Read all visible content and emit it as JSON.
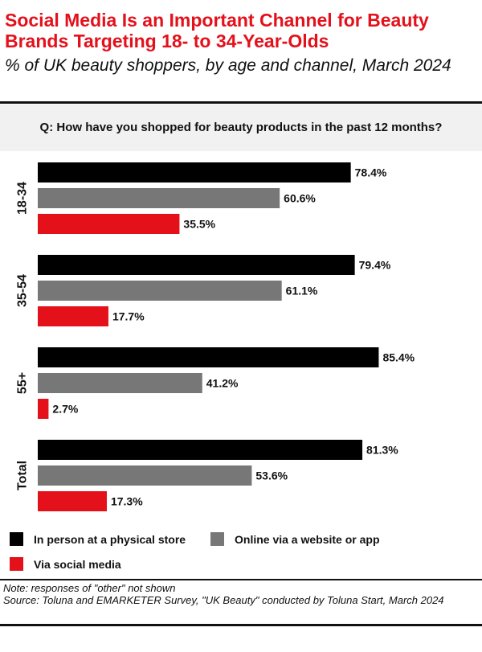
{
  "title": "Social Media Is an Important Channel for Beauty Brands Targeting 18- to 34-Year-Olds",
  "subtitle": "% of UK beauty shoppers, by age and channel, March 2024",
  "question": "Q: How have you shopped for beauty products in the past 12 months?",
  "legend": [
    {
      "label": "In person at a physical store",
      "color": "#000000"
    },
    {
      "label": "Online via a website or app",
      "color": "#777777"
    },
    {
      "label": "Via social media",
      "color": "#e4111b"
    }
  ],
  "note": "Note: responses of \"other\" not shown",
  "source": "Source: Toluna and EMARKETER Survey, \"UK Beauty\" conducted by Toluna Start, March 2024",
  "chart_data": {
    "type": "bar",
    "orientation": "horizontal",
    "categories": [
      "18-34",
      "35-54",
      "55+",
      "Total"
    ],
    "series": [
      {
        "name": "In person at a physical store",
        "color": "#000000",
        "values": [
          78.4,
          79.4,
          85.4,
          81.3
        ]
      },
      {
        "name": "Online via a website or app",
        "color": "#777777",
        "values": [
          60.6,
          61.1,
          41.2,
          53.6
        ]
      },
      {
        "name": "Via social media",
        "color": "#e4111b",
        "values": [
          35.5,
          17.7,
          2.7,
          17.3
        ]
      }
    ],
    "value_suffix": "%",
    "xlim": [
      0,
      100
    ],
    "grid": false,
    "legend_position": "bottom"
  }
}
